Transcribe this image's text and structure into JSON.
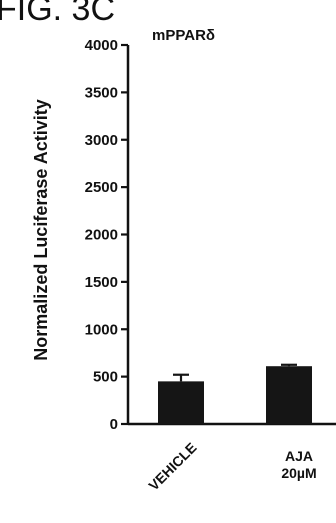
{
  "figure_label": "FIG. 3C",
  "chart_data": {
    "type": "bar",
    "title": "mPPARδ",
    "ylabel": "Normalized Luciferase Activity",
    "xlabel": "",
    "ylim": [
      0,
      4000
    ],
    "yticks": [
      0,
      500,
      1000,
      1500,
      2000,
      2500,
      3000,
      3500,
      4000
    ],
    "categories": [
      {
        "label": "VEHICLE",
        "label_lines": [
          "VEHICLE"
        ]
      },
      {
        "label": "AJA 20µM",
        "label_lines": [
          "AJA",
          "20µM"
        ]
      }
    ],
    "values": [
      450,
      610
    ],
    "errors": [
      70,
      15
    ],
    "colors": {
      "bar": "#151515",
      "axis": "#111111",
      "text": "#111111"
    },
    "grid": false,
    "legend": "none"
  }
}
